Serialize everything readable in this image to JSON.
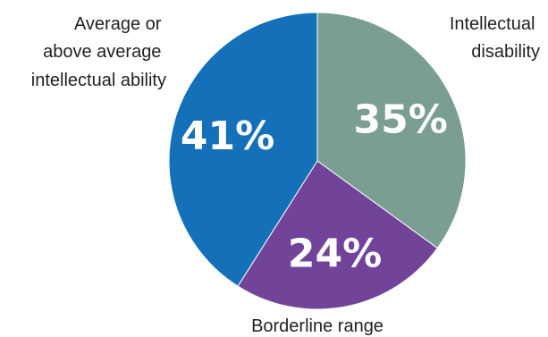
{
  "chart_data": {
    "type": "pie",
    "slices": [
      {
        "label_lines": [
          "Intellectual",
          "disability"
        ],
        "value": 35,
        "value_label": "35%",
        "color": "#7a9e92"
      },
      {
        "label_lines": [
          "Borderline range"
        ],
        "value": 24,
        "value_label": "24%",
        "color": "#71449a"
      },
      {
        "label_lines": [
          "Average or",
          "above average",
          "intellectual ability"
        ],
        "value": 41,
        "value_label": "41%",
        "color": "#1470b8"
      }
    ]
  }
}
